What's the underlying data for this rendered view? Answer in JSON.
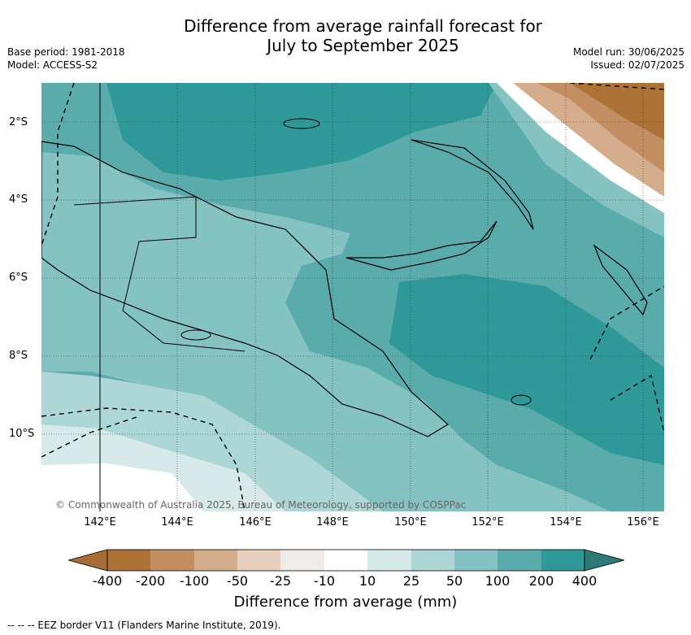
{
  "title_line1": "Difference from average rainfall forecast for",
  "title_line2": "July to September 2025",
  "base_period": "Base period: 1981-2018",
  "model": "Model: ACCESS-S2",
  "model_run": "Model run: 30/06/2025",
  "issued": "Issued: 02/07/2025",
  "lat_labels": [
    "2°S",
    "4°S",
    "6°S",
    "8°S",
    "10°S"
  ],
  "lon_labels": [
    "142°E",
    "144°E",
    "146°E",
    "148°E",
    "150°E",
    "152°E",
    "154°E",
    "156°E"
  ],
  "copyright": "© Commonwealth of Australia 2025, Bureau of Meteorology, supported by COSPPac",
  "colorbar": {
    "ticks": [
      "-400",
      "-200",
      "-100",
      "-50",
      "-25",
      "-10",
      "10",
      "25",
      "50",
      "100",
      "200",
      "400"
    ],
    "colors": [
      "#a86d37",
      "#ac7236",
      "#c38f62",
      "#d4ae8c",
      "#e6d0bd",
      "#efebe8",
      "#ffffff",
      "#d6eae9",
      "#add7d6",
      "#84c3c2",
      "#5aabab",
      "#2f9898",
      "#2d7a76"
    ],
    "title": "Difference from average (mm)"
  },
  "footnote": "-- -- -- EEZ border V11 (Flanders Marine Institute, 2019)."
}
